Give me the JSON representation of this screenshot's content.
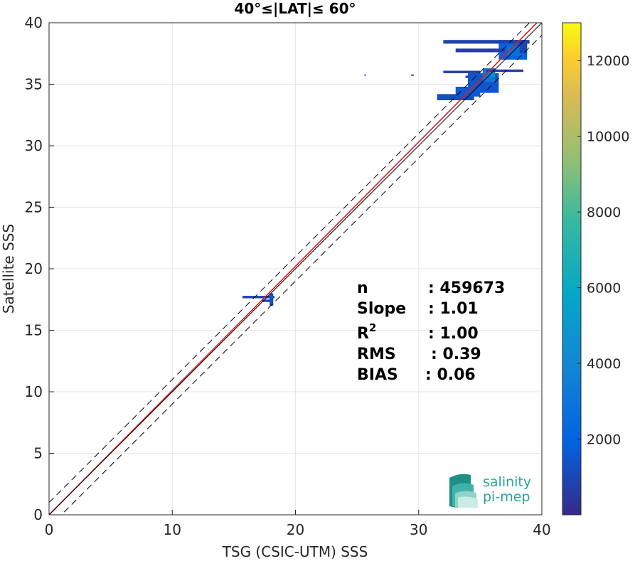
{
  "chart_data": {
    "type": "heatmap",
    "title": "40°≤|LAT|≤ 60°",
    "xlabel": "TSG (CSIC-UTM) SSS",
    "ylabel": "Satellite SSS",
    "xlim": [
      0,
      40
    ],
    "ylim": [
      0,
      40
    ],
    "xticks": [
      "0",
      "10",
      "20",
      "30",
      "40"
    ],
    "yticks": [
      "0",
      "5",
      "10",
      "15",
      "20",
      "25",
      "30",
      "35",
      "40"
    ],
    "grid": true,
    "colorbar": {
      "range": [
        0,
        13000
      ],
      "ticks": [
        "2000",
        "4000",
        "6000",
        "8000",
        "10000",
        "12000"
      ],
      "colormap": "parula"
    },
    "lines": [
      {
        "kind": "regression",
        "color": "#e41a1c",
        "slope": 1.01,
        "intercept": 0.0
      },
      {
        "kind": "one-to-one",
        "color": "#000000",
        "slope": 1.0,
        "intercept": 0.0
      },
      {
        "kind": "upper-bound",
        "color": "#000000",
        "style": "dashed",
        "slope": 1.0,
        "intercept": 1.0
      },
      {
        "kind": "lower-bound",
        "color": "#000000",
        "style": "dashed",
        "slope": 1.0,
        "intercept": -1.0
      }
    ],
    "density_clusters": [
      {
        "x": [
          15.7,
          18.3
        ],
        "y": [
          17.6,
          17.8
        ],
        "level": 900
      },
      {
        "x": [
          17.9,
          18.2
        ],
        "y": [
          17.0,
          18.0
        ],
        "level": 1300
      },
      {
        "x": [
          17.3,
          18.0
        ],
        "y": [
          17.3,
          17.5
        ],
        "level": 900
      },
      {
        "x": [
          33.8,
          35.8
        ],
        "y": [
          35.5,
          35.7
        ],
        "level": 800
      },
      {
        "x": [
          34.0,
          36.5
        ],
        "y": [
          34.3,
          35.9
        ],
        "level": 1500
      },
      {
        "x": [
          35.2,
          36.2
        ],
        "y": [
          35.2,
          36.3
        ],
        "level": 3200
      },
      {
        "x": [
          35.8,
          36.2
        ],
        "y": [
          35.6,
          36.0
        ],
        "level": 4500
      },
      {
        "x": [
          31.5,
          34.5
        ],
        "y": [
          33.7,
          34.2
        ],
        "level": 1200
      },
      {
        "x": [
          33.0,
          35.0
        ],
        "y": [
          34.0,
          34.8
        ],
        "level": 1600
      },
      {
        "x": [
          35.5,
          38.5
        ],
        "y": [
          36.0,
          36.2
        ],
        "level": 600
      },
      {
        "x": [
          32.0,
          35.0
        ],
        "y": [
          35.9,
          36.1
        ],
        "level": 600
      },
      {
        "x": [
          36.5,
          38.8
        ],
        "y": [
          37.0,
          38.6
        ],
        "level": 2000
      },
      {
        "x": [
          37.2,
          38.5
        ],
        "y": [
          37.3,
          38.1
        ],
        "level": 2700
      },
      {
        "x": [
          32.0,
          39.0
        ],
        "y": [
          38.3,
          38.6
        ],
        "level": 800
      },
      {
        "x": [
          33.0,
          37.0
        ],
        "y": [
          37.6,
          37.9
        ],
        "level": 700
      },
      {
        "x": [
          38.2,
          38.8
        ],
        "y": [
          37.5,
          38.5
        ],
        "level": 900
      },
      {
        "x": [
          25.6,
          25.7
        ],
        "y": [
          35.7,
          35.8
        ],
        "level": 500
      },
      {
        "x": [
          29.4,
          29.6
        ],
        "y": [
          35.7,
          35.8
        ],
        "level": 500
      }
    ],
    "stats": [
      {
        "label": "n",
        "value": ": 459673"
      },
      {
        "label": "Slope",
        "value": ": 1.01"
      },
      {
        "label": "R",
        "sup": "2",
        "value": ": 1.00"
      },
      {
        "label": "RMS",
        "value": ": 0.39"
      },
      {
        "label": "BIAS",
        "value": ": 0.06"
      }
    ]
  },
  "logo": {
    "line1": "salinity",
    "line2": "pi-mep",
    "color": "#2aa39a"
  }
}
